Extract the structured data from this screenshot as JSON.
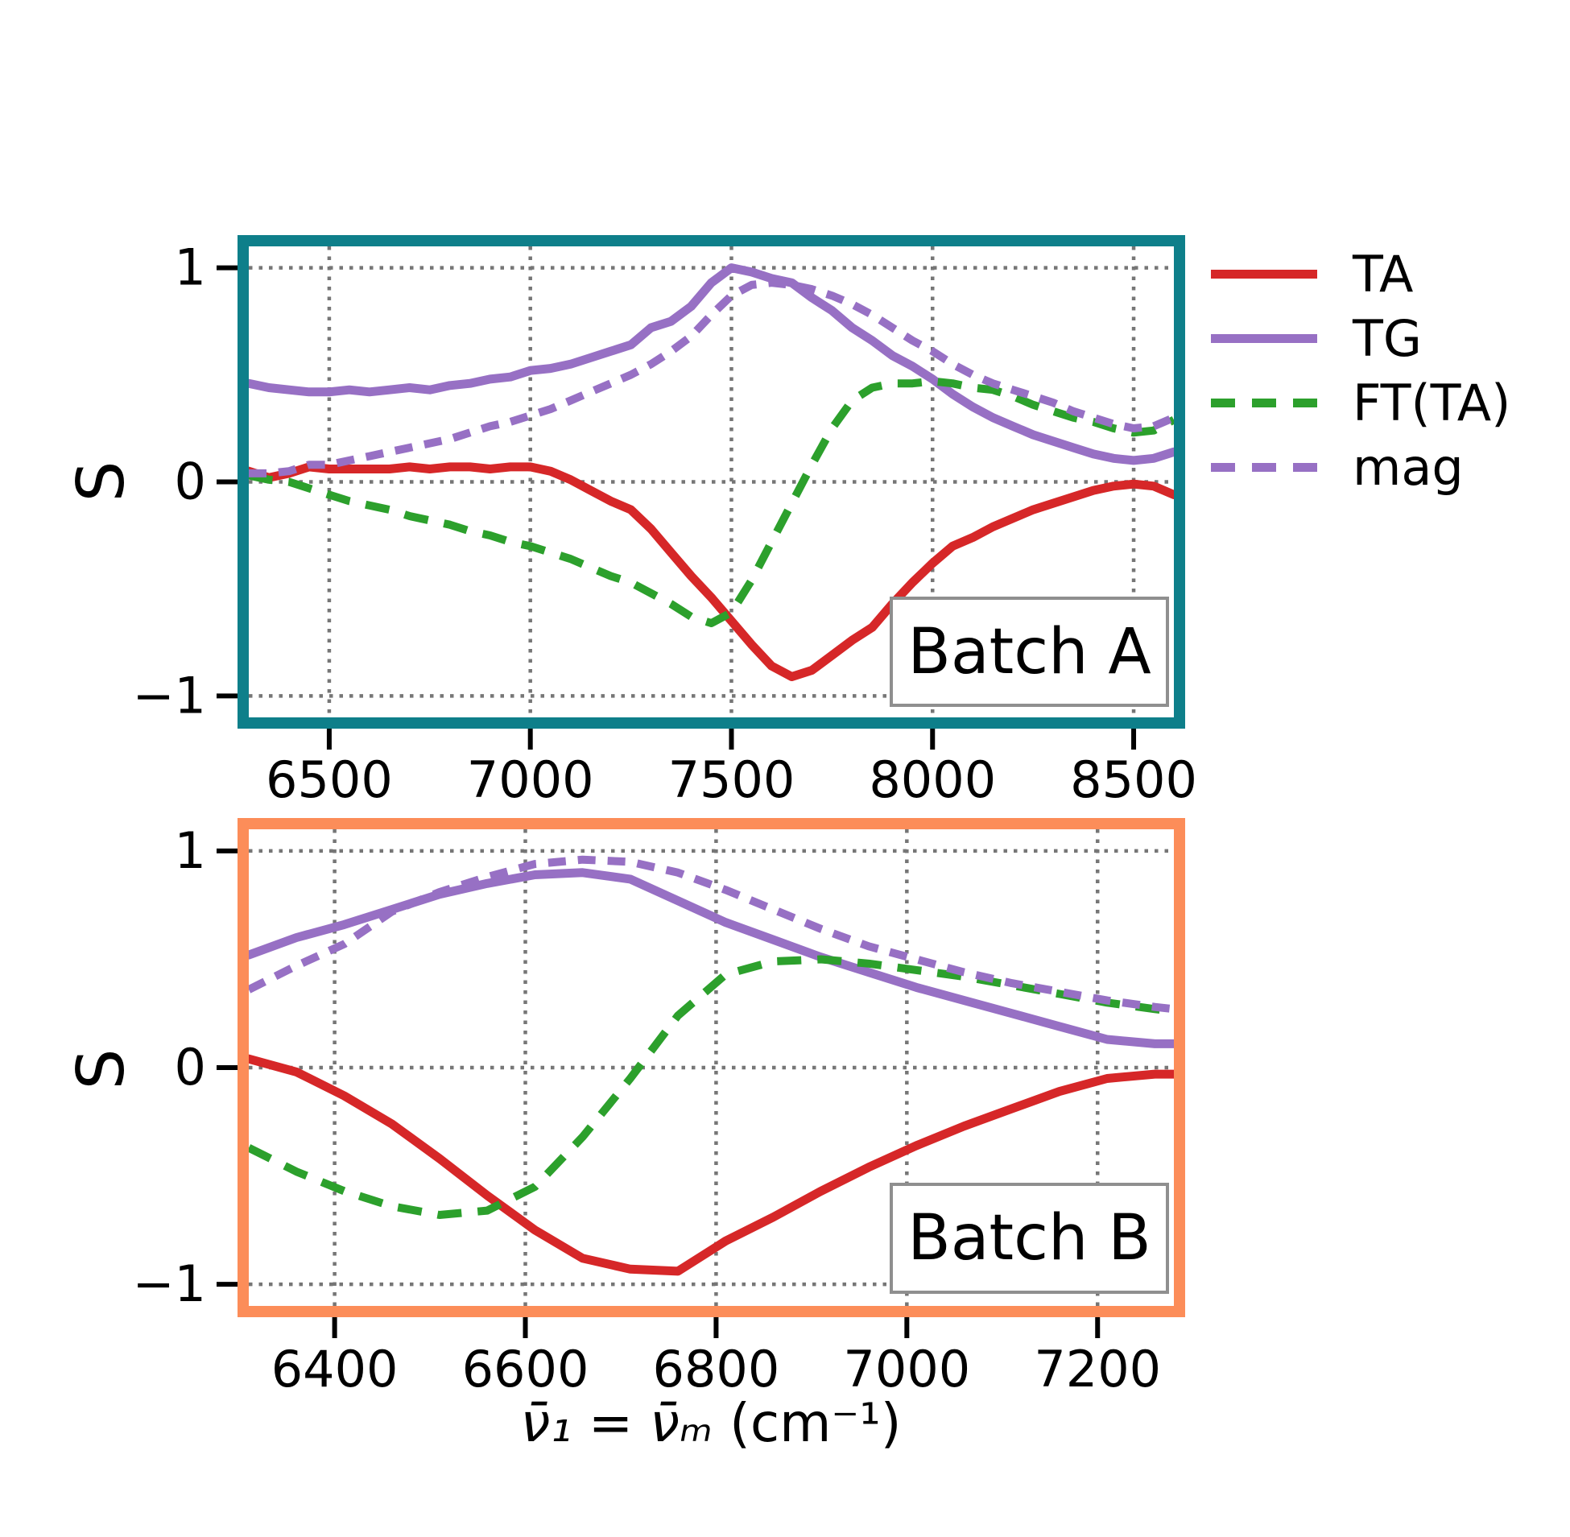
{
  "figure": {
    "xlabel_parts": {
      "lhs": "ν̄₁",
      "eq": " = ",
      "rhs": "ν̄ₘ",
      "unit": " (cm⁻¹)"
    },
    "ylabel": "S",
    "background_color": "#ffffff",
    "grid_color": "#767676",
    "tick_color": "#000000",
    "batch_box_border_color": "#8f8f8f"
  },
  "legend": {
    "position": "right of top panel",
    "items": [
      {
        "label": "TA",
        "color": "#d62728",
        "style": "solid"
      },
      {
        "label": "TG",
        "color": "#9770c4",
        "style": "solid"
      },
      {
        "label": "FT(TA)",
        "color": "#2ca02c",
        "style": "dashed"
      },
      {
        "label": "mag",
        "color": "#9770c4",
        "style": "dashed"
      }
    ]
  },
  "chart_data": [
    {
      "type": "line",
      "title": "Batch A",
      "border_color": "#0e7f8a",
      "xlabel": "ν̄₁ = ν̄ₘ (cm⁻¹)",
      "ylabel": "S",
      "xlim": [
        6300,
        8600
      ],
      "ylim": [
        -1.1,
        1.1
      ],
      "xticks": [
        6500,
        7000,
        7500,
        8000,
        8500
      ],
      "yticks": [
        {
          "value": 1,
          "label": "1"
        },
        {
          "value": 0,
          "label": "0"
        },
        {
          "value": -1,
          "label": "−1"
        }
      ],
      "grid": true,
      "x": [
        6300,
        6350,
        6400,
        6450,
        6500,
        6550,
        6600,
        6650,
        6700,
        6750,
        6800,
        6850,
        6900,
        6950,
        7000,
        7050,
        7100,
        7150,
        7200,
        7250,
        7300,
        7350,
        7400,
        7450,
        7500,
        7550,
        7600,
        7650,
        7700,
        7750,
        7800,
        7850,
        7900,
        7950,
        8000,
        8050,
        8100,
        8150,
        8200,
        8250,
        8300,
        8350,
        8400,
        8450,
        8500,
        8550,
        8600
      ],
      "series": [
        {
          "name": "TA",
          "color": "#d62728",
          "dash": null,
          "values": [
            0.05,
            0.02,
            0.04,
            0.07,
            0.06,
            0.06,
            0.06,
            0.06,
            0.07,
            0.06,
            0.07,
            0.07,
            0.06,
            0.07,
            0.07,
            0.05,
            0.01,
            -0.04,
            -0.09,
            -0.13,
            -0.22,
            -0.33,
            -0.44,
            -0.54,
            -0.65,
            -0.76,
            -0.86,
            -0.91,
            -0.88,
            -0.81,
            -0.74,
            -0.68,
            -0.57,
            -0.47,
            -0.38,
            -0.3,
            -0.26,
            -0.21,
            -0.17,
            -0.13,
            -0.1,
            -0.07,
            -0.04,
            -0.02,
            -0.01,
            -0.02,
            -0.06
          ]
        },
        {
          "name": "TG",
          "color": "#9770c4",
          "dash": null,
          "values": [
            0.46,
            0.44,
            0.43,
            0.42,
            0.42,
            0.43,
            0.42,
            0.43,
            0.44,
            0.43,
            0.45,
            0.46,
            0.48,
            0.49,
            0.52,
            0.53,
            0.55,
            0.58,
            0.61,
            0.64,
            0.72,
            0.75,
            0.82,
            0.93,
            1.0,
            0.98,
            0.95,
            0.93,
            0.86,
            0.8,
            0.72,
            0.66,
            0.59,
            0.54,
            0.48,
            0.41,
            0.35,
            0.3,
            0.26,
            0.22,
            0.19,
            0.16,
            0.13,
            0.11,
            0.1,
            0.11,
            0.14
          ]
        },
        {
          "name": "FT(TA)",
          "color": "#2ca02c",
          "dash": [
            30,
            20
          ],
          "values": [
            0.03,
            0.01,
            0.0,
            -0.03,
            -0.06,
            -0.09,
            -0.11,
            -0.13,
            -0.16,
            -0.18,
            -0.2,
            -0.23,
            -0.25,
            -0.28,
            -0.3,
            -0.33,
            -0.36,
            -0.4,
            -0.44,
            -0.47,
            -0.52,
            -0.57,
            -0.63,
            -0.66,
            -0.61,
            -0.46,
            -0.28,
            -0.1,
            0.08,
            0.25,
            0.38,
            0.44,
            0.46,
            0.46,
            0.47,
            0.46,
            0.44,
            0.43,
            0.4,
            0.36,
            0.33,
            0.3,
            0.28,
            0.25,
            0.23,
            0.24,
            0.29
          ]
        },
        {
          "name": "mag",
          "color": "#9770c4",
          "dash": [
            22,
            15
          ],
          "values": [
            0.04,
            0.04,
            0.05,
            0.08,
            0.08,
            0.1,
            0.12,
            0.14,
            0.16,
            0.18,
            0.2,
            0.23,
            0.26,
            0.28,
            0.31,
            0.34,
            0.38,
            0.42,
            0.46,
            0.5,
            0.55,
            0.61,
            0.68,
            0.78,
            0.87,
            0.92,
            0.93,
            0.92,
            0.9,
            0.87,
            0.83,
            0.78,
            0.72,
            0.66,
            0.61,
            0.55,
            0.5,
            0.46,
            0.43,
            0.4,
            0.37,
            0.33,
            0.3,
            0.27,
            0.25,
            0.26,
            0.3
          ]
        }
      ]
    },
    {
      "type": "line",
      "title": "Batch B",
      "border_color": "#fc8d59",
      "xlabel": "ν̄₁ = ν̄ₘ (cm⁻¹)",
      "ylabel": "S",
      "xlim": [
        6310,
        7280
      ],
      "ylim": [
        -1.1,
        1.1
      ],
      "xticks": [
        6400,
        6600,
        6800,
        7000,
        7200
      ],
      "yticks": [
        {
          "value": 1,
          "label": "1"
        },
        {
          "value": 0,
          "label": "0"
        },
        {
          "value": -1,
          "label": "−1"
        }
      ],
      "grid": true,
      "x": [
        6310,
        6360,
        6410,
        6460,
        6510,
        6560,
        6610,
        6660,
        6710,
        6760,
        6810,
        6860,
        6910,
        6960,
        7010,
        7060,
        7110,
        7160,
        7210,
        7260,
        7280
      ],
      "series": [
        {
          "name": "TA",
          "color": "#d62728",
          "dash": null,
          "values": [
            0.04,
            -0.02,
            -0.13,
            -0.26,
            -0.42,
            -0.59,
            -0.75,
            -0.88,
            -0.93,
            -0.94,
            -0.8,
            -0.69,
            -0.57,
            -0.46,
            -0.36,
            -0.27,
            -0.19,
            -0.11,
            -0.05,
            -0.03,
            -0.03
          ]
        },
        {
          "name": "TG",
          "color": "#9770c4",
          "dash": null,
          "values": [
            0.52,
            0.6,
            0.66,
            0.73,
            0.8,
            0.85,
            0.89,
            0.9,
            0.87,
            0.77,
            0.67,
            0.59,
            0.51,
            0.44,
            0.37,
            0.31,
            0.25,
            0.19,
            0.13,
            0.11,
            0.11
          ]
        },
        {
          "name": "FT(TA)",
          "color": "#2ca02c",
          "dash": [
            30,
            20
          ],
          "values": [
            -0.37,
            -0.48,
            -0.57,
            -0.64,
            -0.68,
            -0.66,
            -0.55,
            -0.32,
            -0.05,
            0.24,
            0.43,
            0.49,
            0.5,
            0.48,
            0.45,
            0.42,
            0.38,
            0.34,
            0.3,
            0.27,
            0.26
          ]
        },
        {
          "name": "mag",
          "color": "#9770c4",
          "dash": [
            22,
            15
          ],
          "values": [
            0.36,
            0.47,
            0.57,
            0.72,
            0.81,
            0.88,
            0.94,
            0.96,
            0.95,
            0.9,
            0.82,
            0.73,
            0.64,
            0.56,
            0.5,
            0.44,
            0.39,
            0.35,
            0.31,
            0.28,
            0.27
          ]
        }
      ]
    }
  ]
}
